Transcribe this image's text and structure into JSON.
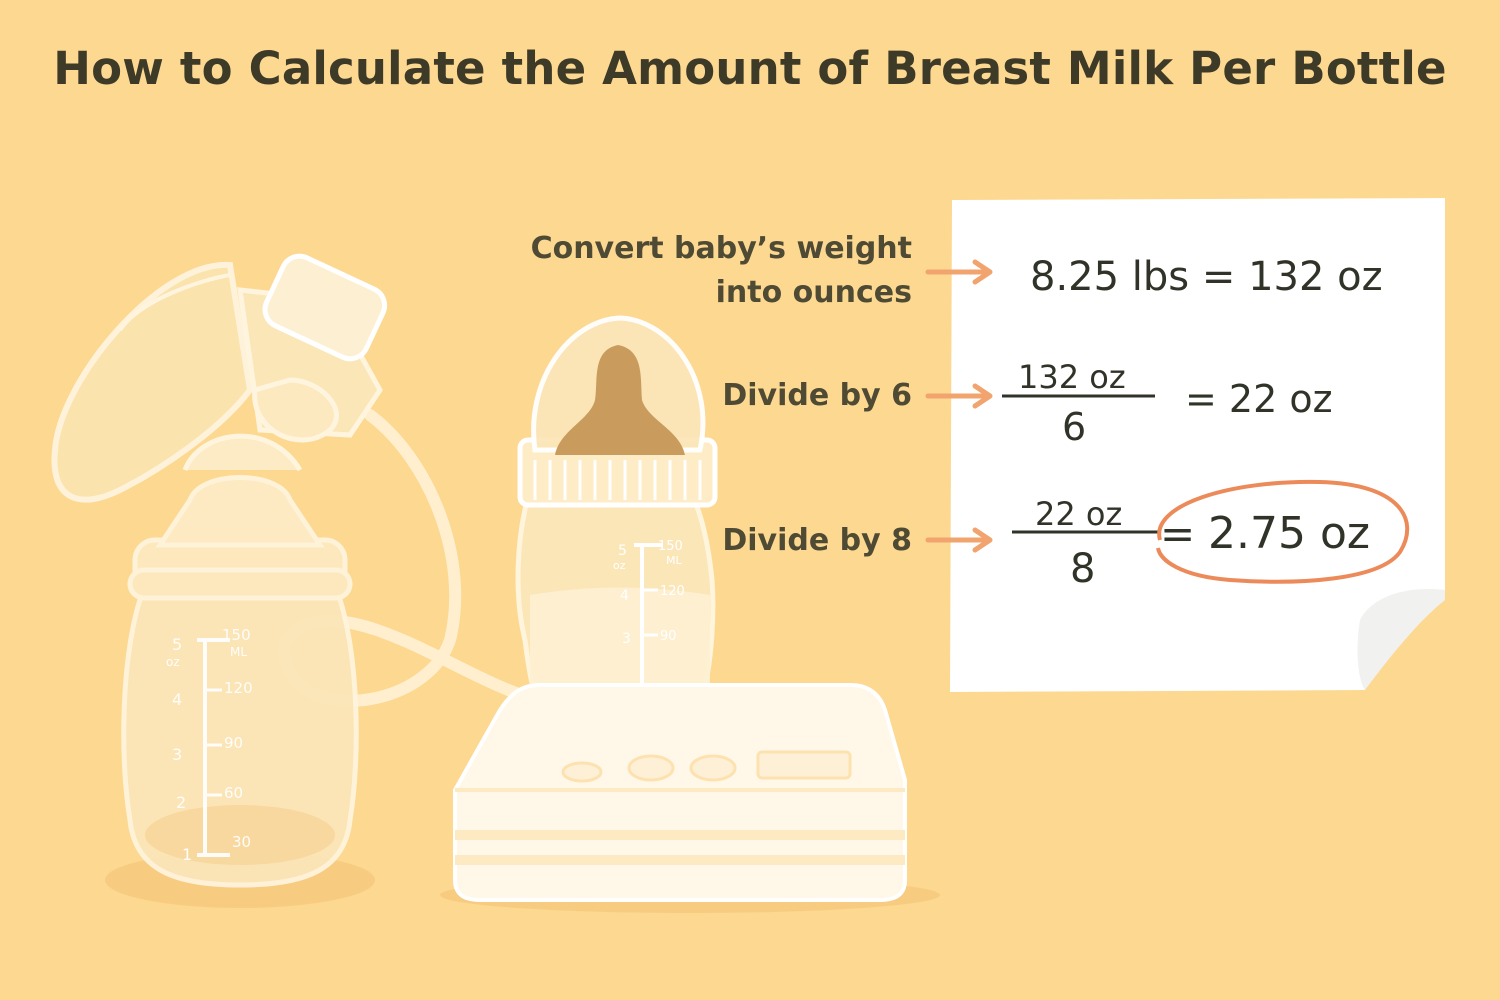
{
  "title": "How to Calculate the Amount of Breast Milk Per Bottle",
  "steps": [
    {
      "label_line1": "Convert baby’s weight",
      "label_line2": "into ounces",
      "equation": "8.25 lbs = 132 oz"
    },
    {
      "label": "Divide by 6",
      "numerator": "132 oz",
      "denominator": "6",
      "result": "= 22 oz"
    },
    {
      "label": "Divide by 8",
      "numerator": "22 oz",
      "denominator": "8",
      "equals": "=",
      "result": "2.75 oz"
    }
  ],
  "bottle_scale_left": {
    "oz": [
      "5",
      "4",
      "3",
      "2",
      "1"
    ],
    "oz_unit": "oz",
    "ml": [
      "150",
      "120",
      "90",
      "60",
      "30"
    ],
    "ml_unit": "ML"
  },
  "bottle_scale_right": {
    "oz": [
      "5",
      "4",
      "3"
    ],
    "oz_unit": "oz",
    "ml": [
      "150",
      "120",
      "90"
    ],
    "ml_unit": "ML"
  },
  "colors": {
    "background": "#fdd891",
    "arrow": "#f2a46e",
    "circle": "#ec8a5a",
    "nipple": "#c99c5e",
    "ink": "#2f3328"
  }
}
